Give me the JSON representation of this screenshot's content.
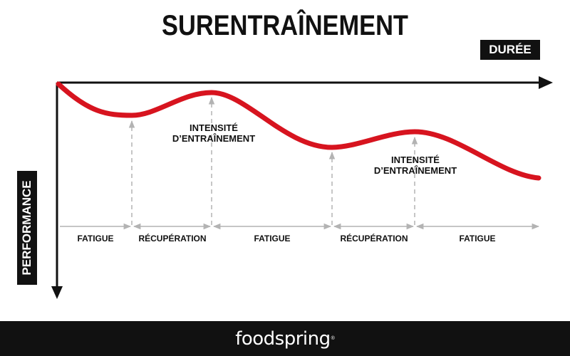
{
  "title": "SURENTRAÎNEMENT",
  "axes": {
    "x_label": "DURÉE",
    "y_label": "PERFORMANCE"
  },
  "annotations": [
    {
      "lines": [
        "INTENSITÉ",
        "D’ENTRAÎNEMENT"
      ]
    },
    {
      "lines": [
        "INTENSITÉ",
        "D’ENTRAÎNEMENT"
      ]
    }
  ],
  "phases": [
    "FATIGUE",
    "RÉCUPÉRATION",
    "FATIGUE",
    "RÉCUPÉRATION",
    "FATIGUE"
  ],
  "colors": {
    "curve": "#d7141f",
    "axis": "#111111",
    "guide": "#b3b3b3",
    "footer": "#111111"
  },
  "footer": {
    "brand": "foodspring",
    "registered": "®"
  }
}
